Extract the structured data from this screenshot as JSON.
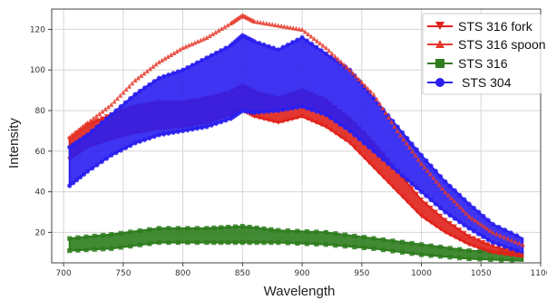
{
  "chart_data": {
    "type": "scatter",
    "title": "",
    "xlabel": "Wavelength",
    "ylabel": "Intensity",
    "xlim": [
      690,
      1100
    ],
    "ylim": [
      5,
      130
    ],
    "grid": true,
    "legend_position": "top-right",
    "x_ticks": [
      700,
      750,
      800,
      850,
      900,
      950,
      1000,
      1050,
      1100
    ],
    "y_ticks": [
      20,
      40,
      60,
      80,
      100,
      120
    ],
    "series": [
      {
        "name": "STS 316 fork",
        "color": "#e0221b",
        "marker": "triangle-down",
        "x": [
          705,
          720,
          740,
          760,
          780,
          800,
          820,
          840,
          850,
          860,
          880,
          900,
          920,
          940,
          960,
          980,
          1000,
          1020,
          1040,
          1060,
          1085
        ],
        "y_low": [
          56,
          62,
          66,
          69,
          71,
          72,
          74,
          78,
          80,
          77,
          74,
          77,
          72,
          64,
          52,
          40,
          28,
          20,
          14,
          10,
          8
        ],
        "y_high": [
          66,
          73,
          78,
          82,
          84,
          84,
          86,
          89,
          92,
          89,
          86,
          90,
          85,
          76,
          64,
          50,
          36,
          26,
          18,
          13,
          10
        ]
      },
      {
        "name": "STS 316 spoon",
        "color": "#e53a2c",
        "marker": "triangle-up",
        "x": [
          705,
          720,
          740,
          760,
          780,
          800,
          820,
          840,
          850,
          860,
          880,
          900,
          920,
          940,
          960,
          980,
          1000,
          1020,
          1040,
          1060,
          1085
        ],
        "y": [
          67,
          74,
          83,
          95,
          104,
          111,
          116,
          123,
          127,
          124,
          122,
          120,
          111,
          100,
          88,
          70,
          54,
          40,
          28,
          20,
          14
        ]
      },
      {
        "name": "STS 316",
        "color": "#2e7d1e",
        "marker": "square",
        "x": [
          705,
          740,
          780,
          820,
          850,
          880,
          920,
          960,
          1000,
          1040,
          1085
        ],
        "y_low": [
          11,
          12,
          15,
          15,
          15,
          15,
          14,
          12,
          9,
          7,
          6
        ],
        "y_high": [
          17,
          19,
          22,
          22,
          23,
          21,
          20,
          17,
          14,
          11,
          10
        ]
      },
      {
        "name": "STS 304",
        "color": "#2a1ef0",
        "marker": "circle",
        "x": [
          705,
          720,
          740,
          760,
          780,
          800,
          820,
          840,
          850,
          860,
          880,
          900,
          920,
          940,
          960,
          980,
          1000,
          1020,
          1040,
          1060,
          1085
        ],
        "y_low": [
          43,
          50,
          58,
          64,
          68,
          70,
          72,
          76,
          80,
          79,
          80,
          82,
          78,
          70,
          60,
          50,
          40,
          30,
          22,
          15,
          10
        ],
        "y_high": [
          62,
          68,
          78,
          88,
          96,
          100,
          106,
          112,
          117,
          114,
          110,
          116,
          108,
          100,
          86,
          72,
          58,
          45,
          34,
          24,
          17
        ]
      }
    ]
  }
}
